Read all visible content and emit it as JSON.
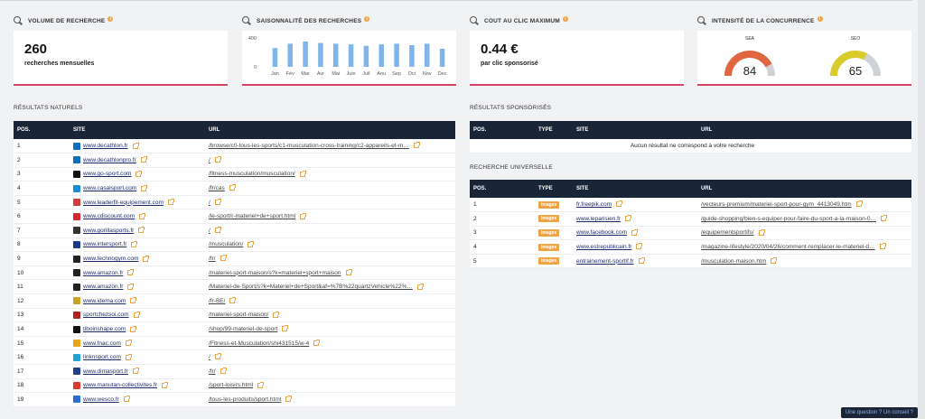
{
  "metrics": {
    "volume": {
      "title": "VOLUME DE RECHERCHE",
      "value": "260",
      "label": "recherches mensuelles"
    },
    "seasonality": {
      "title": "SAISONNALITÉ DES RECHERCHES"
    },
    "cpc": {
      "title": "COUT AU CLIC MAXIMUM",
      "value": "0.44 €",
      "label": "par clic sponsorisé"
    },
    "competition": {
      "title": "INTENSITÉ DE LA CONCURRENCE"
    }
  },
  "chart_data": {
    "type": "bar",
    "categories": [
      "Jan",
      "Fév",
      "Mar",
      "Avr",
      "Mai",
      "Juin",
      "Juil",
      "Aou",
      "Sep",
      "Oct",
      "Nov",
      "Dec"
    ],
    "values": [
      260,
      320,
      350,
      330,
      320,
      310,
      290,
      310,
      320,
      300,
      320,
      250
    ],
    "y_ticks": [
      "400",
      "0"
    ],
    "ylim": [
      0,
      400
    ],
    "color": "#7fb5ea"
  },
  "gauges": [
    {
      "label": "SEA",
      "value": "84",
      "fraction": 0.84,
      "color": "#e0663f"
    },
    {
      "label": "SEO",
      "value": "65",
      "fraction": 0.65,
      "color": "#d9cc2a"
    }
  ],
  "natural": {
    "title": "RÉSULTATS NATURELS",
    "headers": [
      "POS.",
      "SITE",
      "URL"
    ],
    "rows": [
      {
        "pos": "1",
        "site": "www.decathlon.fr",
        "url": "/browse/c0-tous-les-sports/c1-musculation-cross-training/c2-appareils-et-m…",
        "fav": "#0f6fb8"
      },
      {
        "pos": "2",
        "site": "www.decathlonpro.fr",
        "url": "/",
        "fav": "#0f6fb8"
      },
      {
        "pos": "3",
        "site": "www.go-sport.com",
        "url": "/fitness-musculation/musculation/",
        "fav": "#111111"
      },
      {
        "pos": "4",
        "site": "www.casalsport.com",
        "url": "/fr/cas",
        "fav": "#1b8fd6"
      },
      {
        "pos": "5",
        "site": "www.leaderfit-equipement.com",
        "url": "/",
        "fav": "#d43a3a"
      },
      {
        "pos": "6",
        "site": "www.cdiscount.com",
        "url": "/le-sport/r-materiel+de+sport.html",
        "fav": "#d42a2a"
      },
      {
        "pos": "7",
        "site": "www.gorillasports.fr",
        "url": "/",
        "fav": "#333333"
      },
      {
        "pos": "8",
        "site": "www.intersport.fr",
        "url": "/musculation/",
        "fav": "#1a3a8a"
      },
      {
        "pos": "9",
        "site": "www.technogym.com",
        "url": "/fr/",
        "fav": "#222222"
      },
      {
        "pos": "10",
        "site": "www.amazon.fr",
        "url": "/materiel-sport-maison/s?k=materiel+sport+maison",
        "fav": "#222222"
      },
      {
        "pos": "11",
        "site": "www.amazon.fr",
        "url": "/Materiel-de-Sport/s?k=Materiel+de+Sport&af=%7B%22quartzVehicle%22%…",
        "fav": "#222222"
      },
      {
        "pos": "12",
        "site": "www.idema.com",
        "url": "/fr-BE/",
        "fav": "#c9a227"
      },
      {
        "pos": "13",
        "site": "sportchezsoi.com",
        "url": "/materiel-sport-maison/",
        "fav": "#b22222"
      },
      {
        "pos": "14",
        "site": "tiboinshape.com",
        "url": "/shop/99-materiel-de-sport",
        "fav": "#111111"
      },
      {
        "pos": "15",
        "site": "www.fnac.com",
        "url": "/Fitness-et-Musculation/shi431515/w-4",
        "fav": "#e8a317"
      },
      {
        "pos": "16",
        "site": "linknsport.com",
        "url": "/",
        "fav": "#1fa3d6"
      },
      {
        "pos": "17",
        "site": "www.dimasport.fr",
        "url": "/fr/",
        "fav": "#1e3f8a"
      },
      {
        "pos": "18",
        "site": "www.manutan-collectivites.fr",
        "url": "/sport-loisirs.html",
        "fav": "#e03a2f"
      },
      {
        "pos": "19",
        "site": "www.wesco.fr",
        "url": "/tous-les-produits/sport.html",
        "fav": "#2a6fc9"
      }
    ]
  },
  "sponsored": {
    "title": "RÉSULTATS SPONSORISÉS",
    "headers": [
      "POS.",
      "TYPE",
      "SITE",
      "URL"
    ],
    "empty": "Aucun résultat ne correspond à votre recherche"
  },
  "universal": {
    "title": "RECHERCHE UNIVERSELLE",
    "headers": [
      "POS.",
      "TYPE",
      "SITE",
      "URL"
    ],
    "rows": [
      {
        "pos": "1",
        "type": "Images",
        "site": "fr.freepik.com",
        "url": "/vecteurs-premium/materiel-sport-pour-gym_4413049.htm"
      },
      {
        "pos": "2",
        "type": "Images",
        "site": "www.leparisien.fr",
        "url": "/guide-shopping/bien-s-equiper-pour-faire-du-sport-a-la-maison-0…"
      },
      {
        "pos": "3",
        "type": "Images",
        "site": "www.facebook.com",
        "url": "/equipementsportifs/"
      },
      {
        "pos": "4",
        "type": "Images",
        "site": "www.estrepublicain.fr",
        "url": "/magazine-lifestyle/2020/04/26/comment-remplacer-le-materiel-d…"
      },
      {
        "pos": "5",
        "type": "Images",
        "site": "entrainement-sportif.fr",
        "url": "/musculation-maison.htm"
      }
    ]
  },
  "help": {
    "label": "Une question ? Un conseil ?"
  }
}
